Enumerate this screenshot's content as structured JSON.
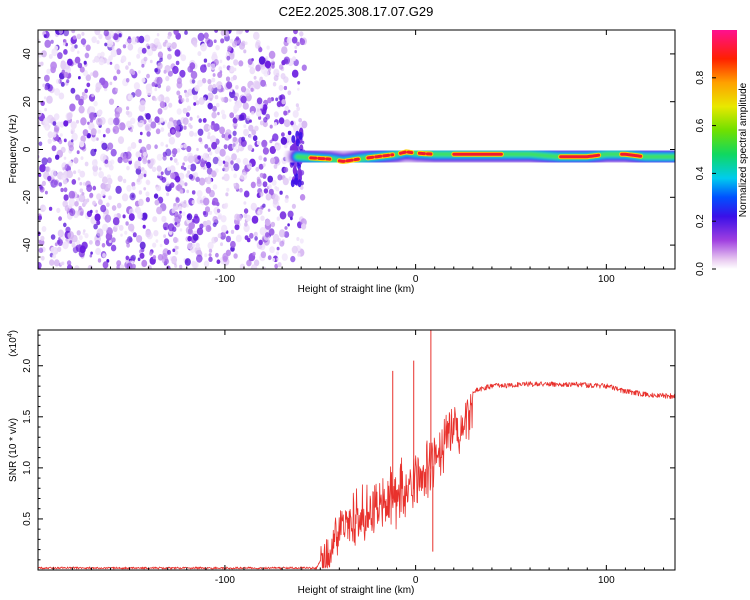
{
  "figure_title": "C2E2.2025.308.17.07.G29",
  "chart_data": [
    {
      "type": "heatmap",
      "name": "spectrogram",
      "xlabel": "Height of straight line (km)",
      "ylabel": "Frequency (Hz)",
      "xlim": [
        -198,
        136
      ],
      "ylim": [
        -50,
        50
      ],
      "xticks": [
        -100,
        0,
        100
      ],
      "xtick_labels": [
        "-100",
        "0",
        "100"
      ],
      "yticks": [
        -40,
        -20,
        0,
        20,
        40
      ],
      "ytick_labels": [
        "-40",
        "-20",
        "0",
        "20",
        "40"
      ],
      "noise_region_x": [
        -198,
        -62
      ],
      "signal_ridge": {
        "x": [
          -62,
          -55,
          -45,
          -38,
          -30,
          -20,
          -10,
          -5,
          0,
          10,
          20,
          40,
          60,
          75,
          90,
          100,
          110,
          120,
          136
        ],
        "freq_hz": [
          -3,
          -3.5,
          -4,
          -5,
          -4,
          -3,
          -2,
          -1,
          -1.5,
          -2,
          -2,
          -2,
          -2,
          -3,
          -3,
          -2,
          -2,
          -3,
          -3
        ]
      },
      "colorbar": {
        "label": "Normalized spectral amplitude",
        "range": [
          0.0,
          1.0
        ],
        "ticks": [
          0.0,
          0.2,
          0.4,
          0.6,
          0.8
        ],
        "tick_labels": [
          "0.0",
          "0.2",
          "0.4",
          "0.6",
          "0.8"
        ]
      }
    },
    {
      "type": "line",
      "name": "snr",
      "xlabel": "Height of straight line (km)",
      "ylabel": "SNR (10 * v/v)",
      "y_multiplier_label": "(x10",
      "y_multiplier_exp": "4",
      "y_multiplier_close": ")",
      "xlim": [
        -198,
        136
      ],
      "ylim": [
        0,
        2.35
      ],
      "xticks": [
        -100,
        0,
        100
      ],
      "xtick_labels": [
        "-100",
        "0",
        "100"
      ],
      "yticks": [
        0.5,
        1.0,
        1.5,
        2.0
      ],
      "ytick_labels": [
        "0.5",
        "1.0",
        "1.5",
        "2.0"
      ],
      "color": "#e8312c",
      "envelope": {
        "x": [
          -198,
          -100,
          -70,
          -52,
          -47,
          -42,
          -35,
          -28,
          -20,
          -10,
          0,
          5,
          10,
          15,
          20,
          25,
          30,
          40,
          60,
          80,
          100,
          110,
          120,
          136
        ],
        "y": [
          0.02,
          0.02,
          0.02,
          0.02,
          0.2,
          0.45,
          0.55,
          0.65,
          0.75,
          0.9,
          1.0,
          1.15,
          1.3,
          1.45,
          1.55,
          1.65,
          1.75,
          1.8,
          1.82,
          1.82,
          1.8,
          1.75,
          1.72,
          1.7
        ]
      },
      "spikes": [
        {
          "x": 8,
          "y": 2.35
        },
        {
          "x": -1,
          "y": 2.05
        },
        {
          "x": -12,
          "y": 1.95
        },
        {
          "x": 9,
          "y": 0.18
        }
      ]
    }
  ]
}
